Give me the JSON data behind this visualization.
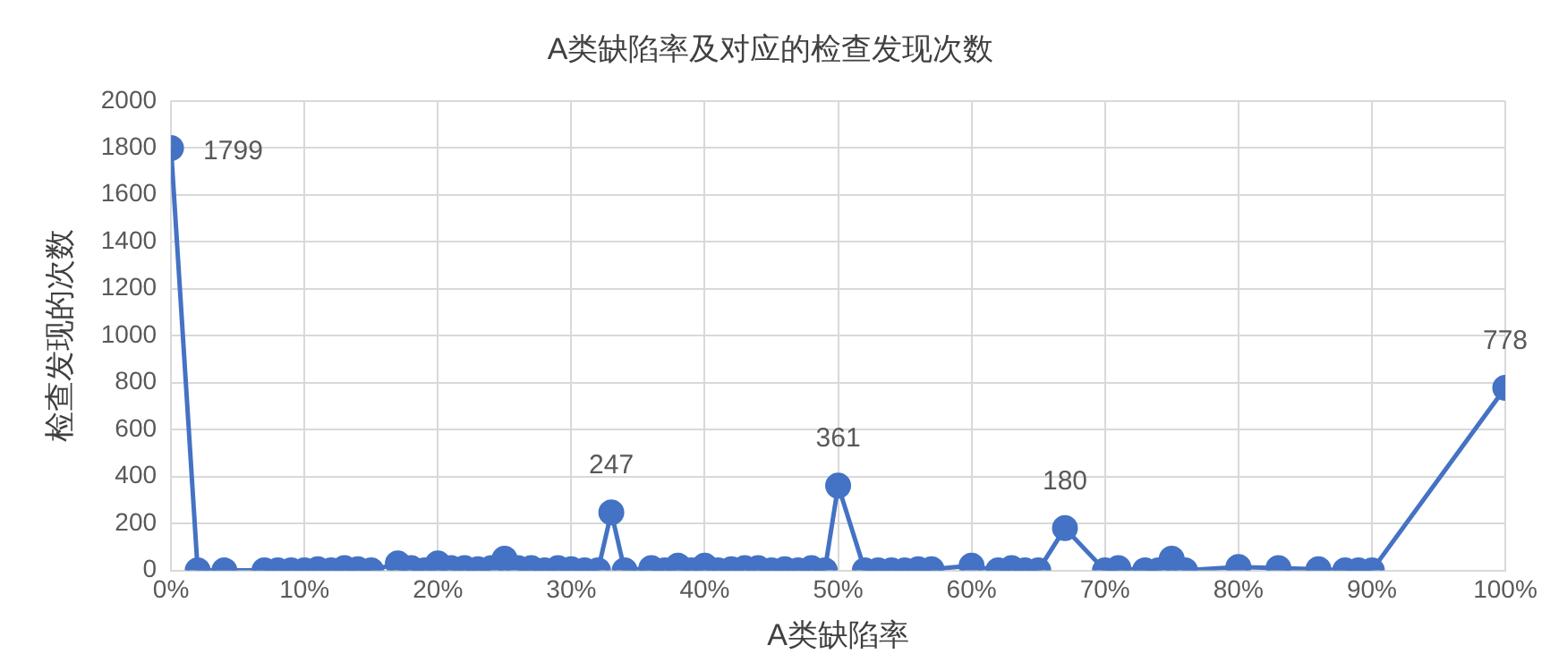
{
  "chart_data": {
    "type": "line",
    "title": "A类缺陷率及对应的检查发现次数",
    "xlabel": "A类缺陷率",
    "ylabel": "检查发现的次数",
    "x": [
      0,
      2,
      4,
      7,
      8,
      9,
      10,
      11,
      12,
      13,
      14,
      15,
      17,
      18,
      19,
      20,
      21,
      22,
      23,
      24,
      25,
      26,
      27,
      28,
      29,
      30,
      31,
      32,
      33,
      34,
      36,
      37,
      38,
      39,
      40,
      41,
      42,
      43,
      44,
      45,
      46,
      47,
      48,
      49,
      50,
      52,
      53,
      54,
      55,
      56,
      57,
      60,
      62,
      63,
      64,
      65,
      67,
      70,
      71,
      73,
      74,
      75,
      76,
      80,
      83,
      86,
      88,
      89,
      90,
      100
    ],
    "series": [
      {
        "color": "#4472c4",
        "values": [
          1799,
          0,
          0,
          0,
          0,
          0,
          0,
          5,
          0,
          10,
          5,
          0,
          30,
          10,
          0,
          30,
          10,
          10,
          5,
          10,
          50,
          10,
          10,
          0,
          10,
          5,
          0,
          0,
          247,
          0,
          10,
          0,
          20,
          0,
          20,
          0,
          5,
          10,
          10,
          0,
          5,
          0,
          10,
          0,
          361,
          0,
          0,
          0,
          0,
          5,
          5,
          20,
          0,
          10,
          0,
          0,
          180,
          0,
          10,
          0,
          0,
          50,
          0,
          15,
          10,
          5,
          0,
          0,
          0,
          778
        ]
      }
    ],
    "value_labels": [
      [
        "1799",
        null,
        null,
        null,
        null,
        null,
        null,
        null,
        null,
        null,
        null,
        null,
        null,
        null,
        null,
        null,
        null,
        null,
        null,
        null,
        null,
        null,
        null,
        null,
        null,
        null,
        null,
        null,
        "247",
        null,
        null,
        null,
        null,
        null,
        null,
        null,
        null,
        null,
        null,
        null,
        null,
        null,
        null,
        null,
        "361",
        null,
        null,
        null,
        null,
        null,
        null,
        null,
        null,
        null,
        null,
        null,
        "180",
        null,
        null,
        null,
        null,
        null,
        null,
        null,
        null,
        null,
        null,
        null,
        null,
        "778"
      ]
    ],
    "xlim": [
      0,
      100
    ],
    "xticks": [
      {
        "value": 0,
        "label": "0%"
      },
      {
        "value": 10,
        "label": "10%"
      },
      {
        "value": 20,
        "label": "20%"
      },
      {
        "value": 30,
        "label": "30%"
      },
      {
        "value": 40,
        "label": "40%"
      },
      {
        "value": 50,
        "label": "50%"
      },
      {
        "value": 60,
        "label": "60%"
      },
      {
        "value": 70,
        "label": "70%"
      },
      {
        "value": 80,
        "label": "80%"
      },
      {
        "value": 90,
        "label": "90%"
      },
      {
        "value": 100,
        "label": "100%"
      }
    ],
    "ylim": [
      0,
      2000
    ],
    "yticks": [
      0,
      200,
      400,
      600,
      800,
      1000,
      1200,
      1400,
      1600,
      1800,
      2000
    ],
    "grid": true,
    "legend": false,
    "marker": "circle",
    "line_style": "solid"
  }
}
